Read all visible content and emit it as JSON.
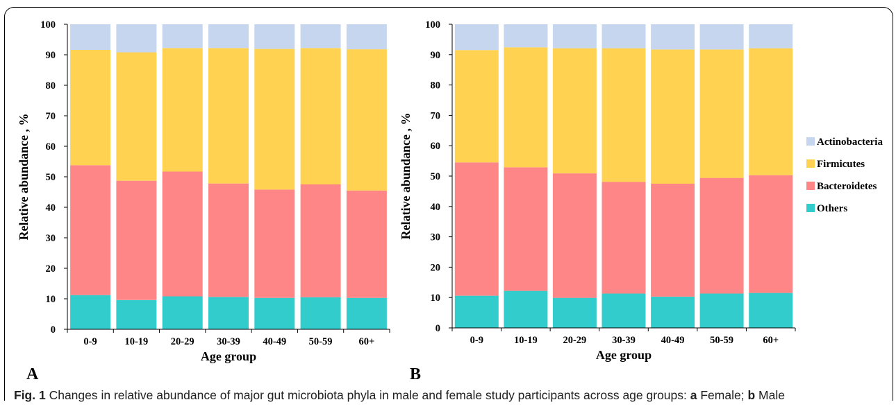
{
  "figure": {
    "panels": [
      {
        "panel_letter": "A"
      },
      {
        "panel_letter": "B"
      }
    ],
    "caption": {
      "fig_label": "Fig. 1",
      "text_1": "Changes in relative abundance of major gut microbiota phyla in male and female study participants across age groups: ",
      "label_a": "a",
      "text_2": " Female; ",
      "label_b": "b",
      "text_3": " Male"
    }
  },
  "colors": {
    "Others": "#33cccc",
    "Bacteroidetes": "#ff8686",
    "Firmicutes": "#ffd351",
    "Actinobacteria": "#c5d6ee"
  },
  "chart_data": [
    {
      "type": "bar",
      "stacked": true,
      "panel": "A",
      "categories": [
        "0-9",
        "10-19",
        "20-29",
        "30-39",
        "40-49",
        "50-59",
        "60+"
      ],
      "xlabel": "Age group",
      "ylabel": "Relative abundance , %",
      "ylim": [
        0,
        100
      ],
      "yticks": [
        0,
        10,
        20,
        30,
        40,
        50,
        60,
        70,
        80,
        90,
        100
      ],
      "series": [
        {
          "name": "Others",
          "values": [
            11.2,
            9.6,
            10.8,
            10.6,
            10.3,
            10.5,
            10.3
          ]
        },
        {
          "name": "Bacteroidetes",
          "values": [
            42.6,
            39.1,
            40.9,
            37.2,
            35.5,
            37.0,
            35.2
          ]
        },
        {
          "name": "Firmicutes",
          "values": [
            37.8,
            42.1,
            40.5,
            44.4,
            46.1,
            44.7,
            46.3
          ]
        },
        {
          "name": "Actinobacteria",
          "values": [
            8.4,
            9.2,
            7.8,
            7.8,
            8.1,
            7.8,
            8.2
          ]
        }
      ]
    },
    {
      "type": "bar",
      "stacked": true,
      "panel": "B",
      "categories": [
        "0-9",
        "10-19",
        "20-29",
        "30-39",
        "40-49",
        "50-59",
        "60+"
      ],
      "xlabel": "Age group",
      "ylabel": "Relative abundance , %",
      "ylim": [
        0,
        100
      ],
      "yticks": [
        0,
        10,
        20,
        30,
        40,
        50,
        60,
        70,
        80,
        90,
        100
      ],
      "legend_position": "right",
      "series": [
        {
          "name": "Others",
          "values": [
            10.6,
            12.2,
            9.9,
            11.3,
            10.3,
            11.3,
            11.5
          ]
        },
        {
          "name": "Bacteroidetes",
          "values": [
            43.9,
            40.7,
            41.0,
            36.8,
            37.2,
            38.1,
            38.8
          ]
        },
        {
          "name": "Firmicutes",
          "values": [
            37.0,
            39.5,
            41.2,
            44.0,
            44.2,
            42.3,
            41.8
          ]
        },
        {
          "name": "Actinobacteria",
          "values": [
            8.5,
            7.6,
            7.9,
            7.9,
            8.3,
            8.3,
            7.9
          ]
        }
      ],
      "legend": [
        "Actinobacteria",
        "Firmicutes",
        "Bacteroidetes",
        "Others"
      ]
    }
  ]
}
